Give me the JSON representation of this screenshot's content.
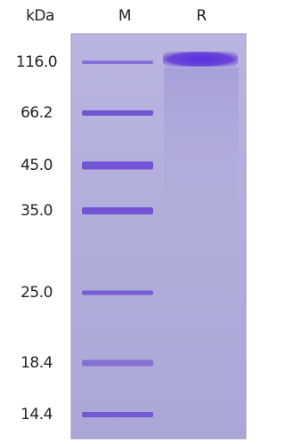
{
  "header": {
    "unit": "kDa",
    "lanes": [
      "M",
      "R"
    ]
  },
  "markers": [
    "116.0",
    "66.2",
    "45.0",
    "35.0",
    "25.0",
    "18.4",
    "14.4"
  ]
}
